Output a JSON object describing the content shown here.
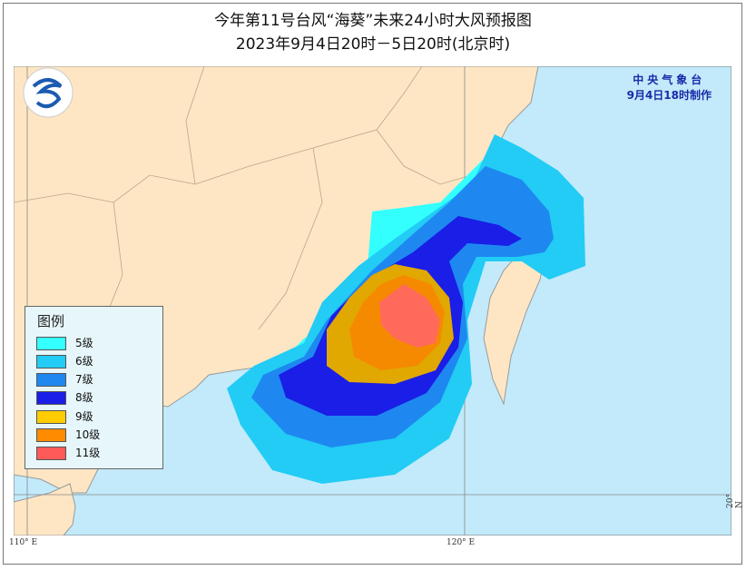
{
  "title_line1": "今年第11号台风“海葵”未来24小时大风预报图",
  "title_line2": "2023年9月4日20时－5日20时(北京时)",
  "agency": {
    "name": "中央气象台",
    "issued": "9月4日18时制作"
  },
  "legend": {
    "title": "图例",
    "items": [
      {
        "label": "5级",
        "color": "#33ffff"
      },
      {
        "label": "6级",
        "color": "#22ccf5"
      },
      {
        "label": "7级",
        "color": "#1e88f0"
      },
      {
        "label": "8级",
        "color": "#1a1ee6"
      },
      {
        "label": "9级",
        "color": "#ffcc00"
      },
      {
        "label": "10级",
        "color": "#ff8c00"
      },
      {
        "label": "11级",
        "color": "#ff5a5a"
      }
    ]
  },
  "axis": {
    "lon_110": "110° E",
    "lon_120": "120° E",
    "lat_20": "20° N"
  },
  "colors": {
    "sea": "#c2eafb",
    "land": "#fee6c4",
    "border": "#b7a68c"
  },
  "logo": "cma-logo"
}
